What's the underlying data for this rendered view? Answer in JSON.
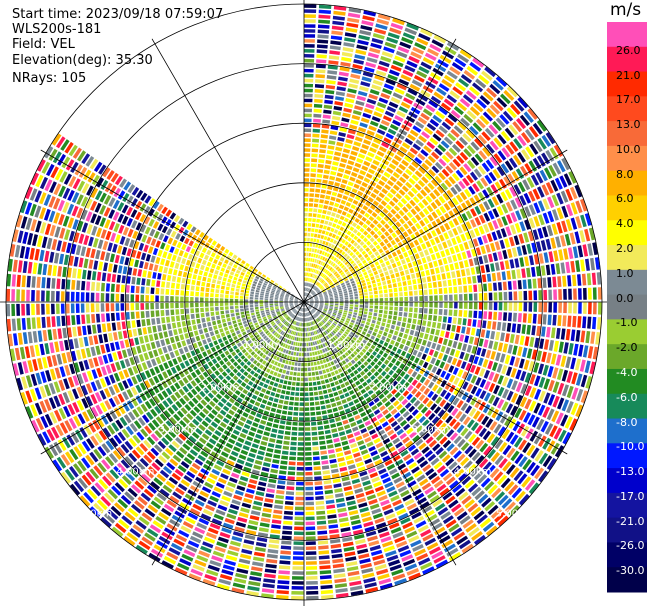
{
  "header": {
    "start_time": "Start time: 2023/09/18 07:59:07",
    "instrument": "WLS200s-181",
    "field": "Field: VEL",
    "elevation": "Elevation(deg): 35.30",
    "nrays": "NRays: 105"
  },
  "colorbar": {
    "unit": "m/s",
    "ticks": [
      "26.0",
      "21.0",
      "17.0",
      "13.0",
      "10.0",
      "8.0",
      "6.0",
      "4.0",
      "2.0",
      "1.0",
      "0.0",
      "-1.0",
      "-2.0",
      "-4.0",
      "-6.0",
      "-8.0",
      "-10.0",
      "-13.0",
      "-17.0",
      "-21.0",
      "-26.0",
      "-30.0"
    ],
    "colors": [
      "#ff4fb8",
      "#ff1a56",
      "#ff2a00",
      "#ff4a1e",
      "#f86a38",
      "#ff8f4a",
      "#ffb000",
      "#ffd000",
      "#ffff00",
      "#f2ea5a",
      "#7c8a94",
      "#778086",
      "#9acd32",
      "#6ba82a",
      "#228b22",
      "#178a5a",
      "#1e6fcc",
      "#0018ff",
      "#0000cc",
      "#1414a0",
      "#111187",
      "#000066",
      "#00004a"
    ]
  },
  "chart_data": {
    "type": "heatmap",
    "projection": "PPI polar",
    "field": "VEL",
    "units": "m/s",
    "range_ring_labels": [
      "1.00km",
      "2.00km",
      "3.00km",
      "4.00km",
      "5.00km"
    ],
    "range_rings_km": [
      1,
      2,
      3,
      4,
      5
    ],
    "max_range_km": 5,
    "nrays": 105,
    "sector_gap_deg": [
      305,
      360
    ],
    "color_scale_min": -30,
    "color_scale_max": 26,
    "pattern": "near-zero velocities within ~1 km; positive (yellow/orange) toward north, negative (green) toward south; noisy random values beyond ~2.5-3 km"
  }
}
